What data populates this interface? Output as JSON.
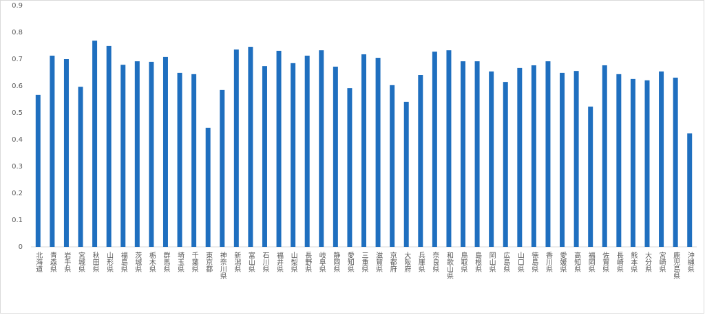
{
  "chart_data": {
    "type": "bar",
    "categories": [
      "北海道",
      "青森県",
      "岩手県",
      "宮城県",
      "秋田県",
      "山形県",
      "福島県",
      "茨城県",
      "栃木県",
      "群馬県",
      "埼玉県",
      "千葉県",
      "東京都",
      "神奈川県",
      "新潟県",
      "富山県",
      "石川県",
      "福井県",
      "山梨県",
      "長野県",
      "岐阜県",
      "静岡県",
      "愛知県",
      "三重県",
      "滋賀県",
      "京都府",
      "大阪府",
      "兵庫県",
      "奈良県",
      "和歌山県",
      "鳥取県",
      "島根県",
      "岡山県",
      "広島県",
      "山口県",
      "徳島県",
      "香川県",
      "愛媛県",
      "高知県",
      "福岡県",
      "佐賀県",
      "長崎県",
      "熊本県",
      "大分県",
      "宮崎県",
      "鹿児島県",
      "沖縄県"
    ],
    "values": [
      0.567,
      0.713,
      0.7,
      0.597,
      0.769,
      0.749,
      0.679,
      0.692,
      0.69,
      0.708,
      0.649,
      0.644,
      0.444,
      0.585,
      0.736,
      0.746,
      0.674,
      0.731,
      0.685,
      0.713,
      0.733,
      0.672,
      0.592,
      0.718,
      0.705,
      0.603,
      0.541,
      0.641,
      0.728,
      0.733,
      0.692,
      0.692,
      0.654,
      0.615,
      0.667,
      0.677,
      0.692,
      0.649,
      0.656,
      0.523,
      0.677,
      0.644,
      0.626,
      0.621,
      0.654,
      0.631,
      0.423
    ],
    "color": "#1f6fbf",
    "ylim": [
      0,
      0.9
    ],
    "yticks": [
      0,
      0.1,
      0.2,
      0.3,
      0.4,
      0.5,
      0.6,
      0.7,
      0.8,
      0.9
    ],
    "grid": false
  }
}
